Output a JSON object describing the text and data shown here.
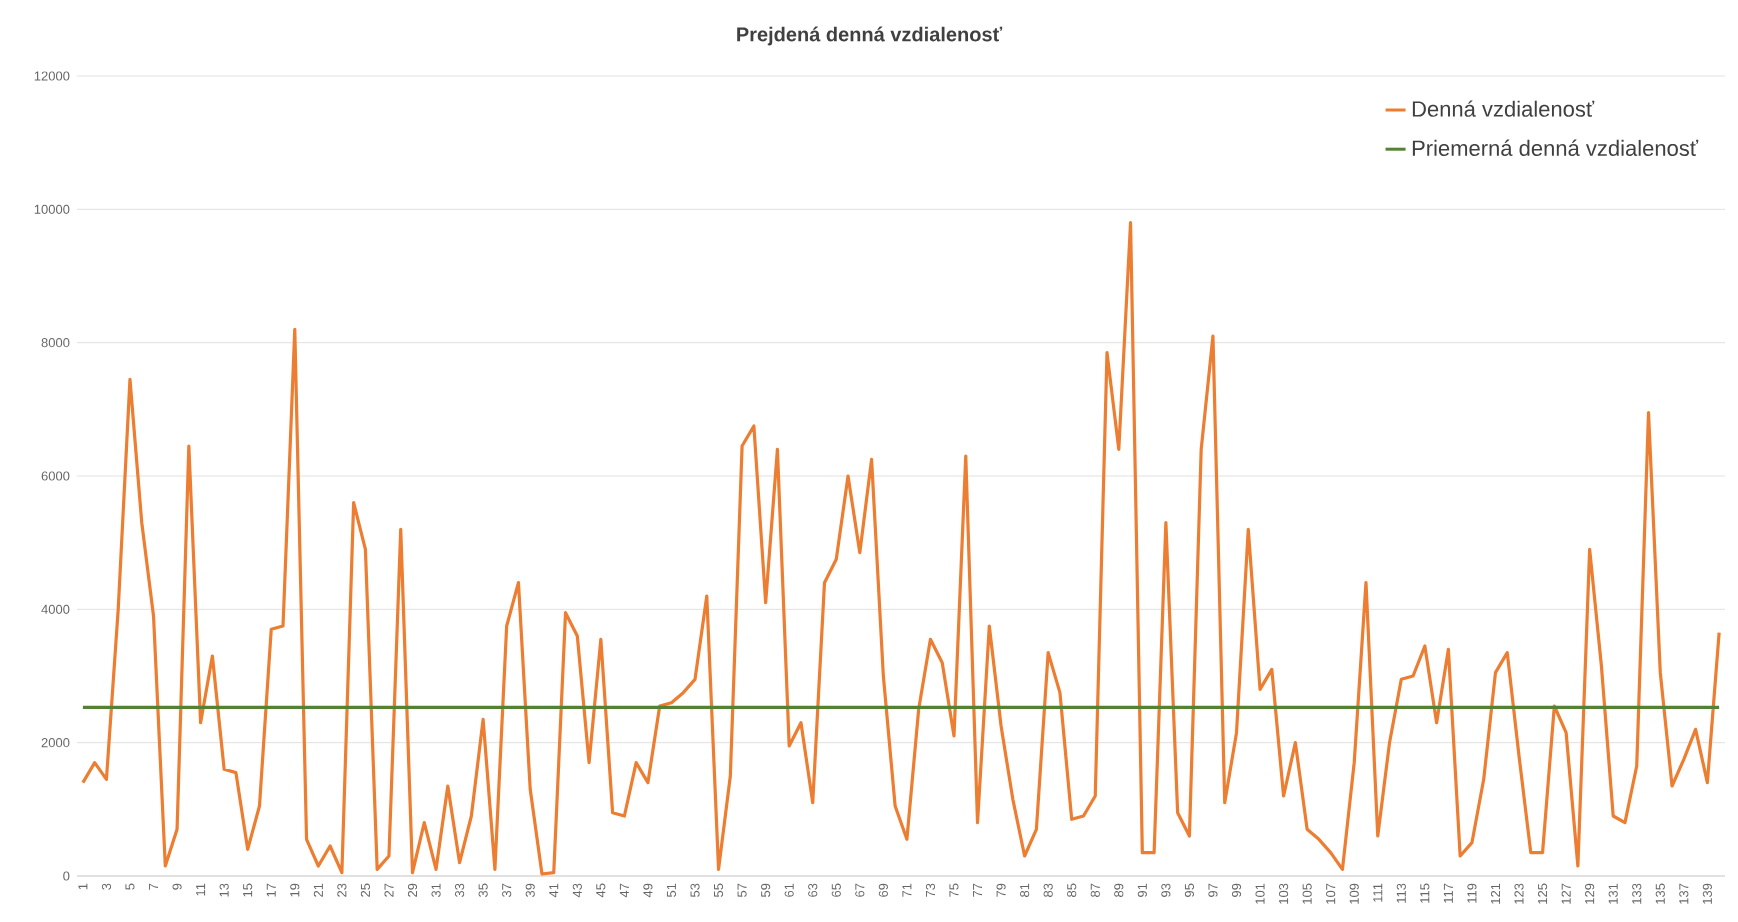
{
  "chart_data": {
    "type": "line",
    "title": "Prejdená denná vzdialenosť",
    "categories": [
      "1",
      null,
      "3",
      null,
      "5",
      null,
      "7",
      null,
      "9",
      null,
      "11",
      null,
      "13",
      null,
      "15",
      null,
      "17",
      null,
      "19",
      null,
      "21",
      null,
      "23",
      null,
      "25",
      null,
      "27",
      null,
      "29",
      null,
      "31",
      null,
      "33",
      null,
      "35",
      null,
      "37",
      null,
      "39",
      null,
      "41",
      null,
      "43",
      null,
      "45",
      null,
      "47",
      null,
      "49",
      null,
      "51",
      null,
      "53",
      null,
      "55",
      null,
      "57",
      null,
      "59",
      null,
      "61",
      null,
      "63",
      null,
      "65",
      null,
      "67",
      null,
      "69",
      null,
      "71",
      null,
      "73",
      null,
      "75",
      null,
      "77",
      null,
      "79",
      null,
      "81",
      null,
      "83",
      null,
      "85",
      null,
      "87",
      null,
      "89",
      null,
      "91",
      null,
      "93",
      null,
      "95",
      null,
      "97",
      null,
      "99",
      null,
      "101",
      null,
      "103",
      null,
      "105",
      null,
      "107",
      null,
      "109",
      null,
      "111",
      null,
      "113",
      null,
      "115",
      null,
      "117",
      null,
      "119",
      null,
      "121",
      null,
      "123",
      null,
      "125",
      null,
      "127",
      null,
      "129",
      null,
      "131",
      null,
      "133",
      null,
      "135",
      null,
      "137",
      null,
      "139",
      null
    ],
    "series": [
      {
        "name": "Denná vzdialenosť",
        "color": "#ed7d31",
        "values": [
          1400,
          1700,
          1450,
          4000,
          7450,
          5300,
          3900,
          150,
          700,
          6450,
          2300,
          3300,
          1600,
          1550,
          400,
          1050,
          3700,
          3750,
          8200,
          550,
          150,
          450,
          50,
          5600,
          4900,
          100,
          300,
          5200,
          50,
          800,
          100,
          1350,
          200,
          900,
          2350,
          100,
          3750,
          4400,
          1300,
          30,
          50,
          3950,
          3600,
          1700,
          3550,
          950,
          900,
          1700,
          1400,
          2550,
          2600,
          2750,
          2950,
          4200,
          100,
          1500,
          6450,
          6750,
          4100,
          6400,
          1950,
          2300,
          1100,
          4400,
          4750,
          6000,
          4850,
          6250,
          3000,
          1050,
          550,
          2500,
          3550,
          3200,
          2100,
          6300,
          800,
          3750,
          2250,
          1150,
          300,
          700,
          3350,
          2750,
          850,
          900,
          1200,
          7850,
          6400,
          9800,
          350,
          350,
          5300,
          950,
          600,
          6400,
          8100,
          1100,
          2150,
          5200,
          2800,
          3100,
          1200,
          2000,
          700,
          550,
          350,
          100,
          1700,
          4400,
          600,
          2000,
          2950,
          3000,
          3450,
          2300,
          3400,
          300,
          500,
          1450,
          3050,
          3350,
          1800,
          350,
          350,
          2550,
          2150,
          150,
          4900,
          3150,
          900,
          800,
          1650,
          6950,
          3050,
          1350,
          1750,
          2200,
          1400,
          3650
        ]
      },
      {
        "name": "Priemerná denná vzdialenosť",
        "color": "#548235",
        "values": [
          2530,
          2530,
          2530,
          2530,
          2530,
          2530,
          2530,
          2530,
          2530,
          2530,
          2530,
          2530,
          2530,
          2530,
          2530,
          2530,
          2530,
          2530,
          2530,
          2530,
          2530,
          2530,
          2530,
          2530,
          2530,
          2530,
          2530,
          2530,
          2530,
          2530,
          2530,
          2530,
          2530,
          2530,
          2530,
          2530,
          2530,
          2530,
          2530,
          2530,
          2530,
          2530,
          2530,
          2530,
          2530,
          2530,
          2530,
          2530,
          2530,
          2530,
          2530,
          2530,
          2530,
          2530,
          2530,
          2530,
          2530,
          2530,
          2530,
          2530,
          2530,
          2530,
          2530,
          2530,
          2530,
          2530,
          2530,
          2530,
          2530,
          2530,
          2530,
          2530,
          2530,
          2530,
          2530,
          2530,
          2530,
          2530,
          2530,
          2530,
          2530,
          2530,
          2530,
          2530,
          2530,
          2530,
          2530,
          2530,
          2530,
          2530,
          2530,
          2530,
          2530,
          2530,
          2530,
          2530,
          2530,
          2530,
          2530,
          2530,
          2530,
          2530,
          2530,
          2530,
          2530,
          2530,
          2530,
          2530,
          2530,
          2530,
          2530,
          2530,
          2530,
          2530,
          2530,
          2530,
          2530,
          2530,
          2530,
          2530,
          2530,
          2530,
          2530,
          2530,
          2530,
          2530,
          2530,
          2530,
          2530,
          2530,
          2530,
          2530,
          2530,
          2530,
          2530,
          2530,
          2530,
          2530,
          2530,
          2530
        ]
      }
    ],
    "ylim": [
      0,
      12000
    ],
    "yticks": [
      0,
      2000,
      4000,
      6000,
      8000,
      10000,
      12000
    ],
    "grid": "y",
    "legend": "top right"
  }
}
